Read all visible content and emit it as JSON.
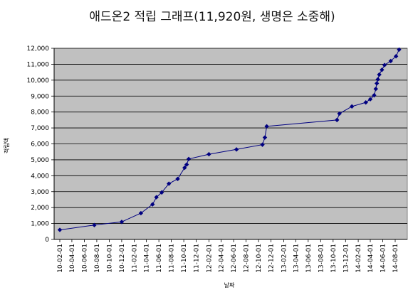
{
  "chart_data": {
    "type": "line",
    "title": "애드온2 적립 그래프(11,920원, 생명은 소중해)",
    "xlabel": "날짜",
    "ylabel": "적립액",
    "ylim": [
      0,
      12000
    ],
    "yticks": [
      0,
      1000,
      2000,
      3000,
      4000,
      5000,
      6000,
      7000,
      8000,
      9000,
      10000,
      11000,
      12000
    ],
    "ytick_labels": [
      "0",
      "1,000",
      "2,000",
      "3,000",
      "4,000",
      "5,000",
      "6,000",
      "7,000",
      "8,000",
      "9,000",
      "10,000",
      "11,000",
      "12,000"
    ],
    "x_tick_labels": [
      "10-02-01",
      "10-04-01",
      "10-06-01",
      "10-08-01",
      "10-10-01",
      "10-12-01",
      "11-02-01",
      "11-04-01",
      "11-06-01",
      "11-08-01",
      "11-10-01",
      "11-12-01",
      "12-02-01",
      "12-04-01",
      "12-06-01",
      "12-08-01",
      "12-10-01",
      "12-12-01",
      "13-02-01",
      "13-04-01",
      "13-06-01",
      "13-08-01",
      "13-10-01",
      "13-12-01",
      "14-02-01",
      "14-04-01",
      "14-06-01",
      "14-08-01"
    ],
    "grid": true,
    "plot_background": "#c0c0c0",
    "series": [
      {
        "color": "#000080",
        "points": [
          {
            "x": "2010-02-01",
            "y": 600
          },
          {
            "x": "2010-07-20",
            "y": 900
          },
          {
            "x": "2010-12-01",
            "y": 1100
          },
          {
            "x": "2011-03-05",
            "y": 1650
          },
          {
            "x": "2011-05-01",
            "y": 2200
          },
          {
            "x": "2011-05-20",
            "y": 2650
          },
          {
            "x": "2011-06-15",
            "y": 2950
          },
          {
            "x": "2011-07-20",
            "y": 3500
          },
          {
            "x": "2011-09-01",
            "y": 3800
          },
          {
            "x": "2011-10-05",
            "y": 4500
          },
          {
            "x": "2011-10-15",
            "y": 4700
          },
          {
            "x": "2011-10-25",
            "y": 5050
          },
          {
            "x": "2012-02-01",
            "y": 5350
          },
          {
            "x": "2012-06-15",
            "y": 5650
          },
          {
            "x": "2012-10-20",
            "y": 5950
          },
          {
            "x": "2012-11-01",
            "y": 6400
          },
          {
            "x": "2012-11-10",
            "y": 7100
          },
          {
            "x": "2013-10-20",
            "y": 7500
          },
          {
            "x": "2013-11-01",
            "y": 7900
          },
          {
            "x": "2014-01-01",
            "y": 8350
          },
          {
            "x": "2014-03-10",
            "y": 8600
          },
          {
            "x": "2014-04-01",
            "y": 8800
          },
          {
            "x": "2014-04-20",
            "y": 9050
          },
          {
            "x": "2014-04-28",
            "y": 9450
          },
          {
            "x": "2014-05-03",
            "y": 9800
          },
          {
            "x": "2014-05-08",
            "y": 10050
          },
          {
            "x": "2014-05-15",
            "y": 10350
          },
          {
            "x": "2014-05-28",
            "y": 10650
          },
          {
            "x": "2014-06-10",
            "y": 10950
          },
          {
            "x": "2014-07-10",
            "y": 11200
          },
          {
            "x": "2014-08-05",
            "y": 11500
          },
          {
            "x": "2014-08-20",
            "y": 11920
          }
        ]
      }
    ]
  }
}
